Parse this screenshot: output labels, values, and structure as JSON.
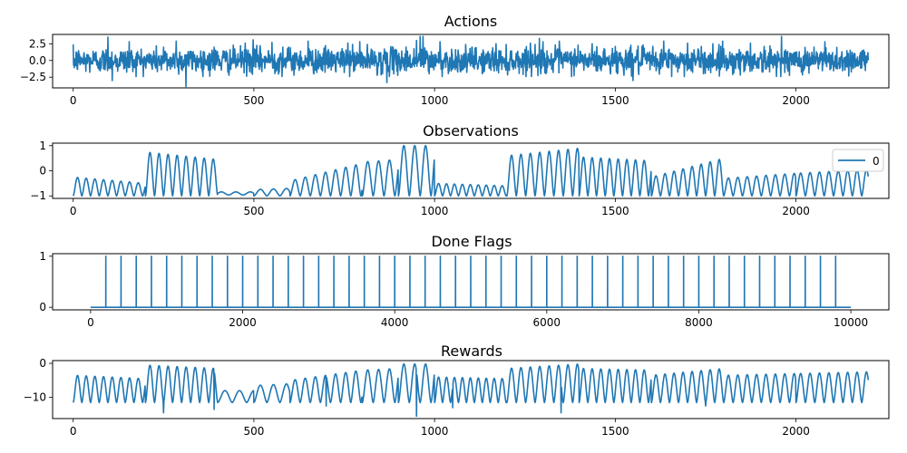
{
  "colors": {
    "series": "#1f77b4",
    "frame": "#000000",
    "background": "#ffffff"
  },
  "chart_data": [
    {
      "type": "line",
      "title": "Actions",
      "xlim": [
        -57,
        2257
      ],
      "ylim": [
        -4.1,
        3.9
      ],
      "xticks": [
        0,
        500,
        1000,
        1500,
        2000
      ],
      "yticks": [
        -2.5,
        0.0,
        2.5
      ],
      "ytick_labels": [
        "−2.5",
        "0.0",
        "2.5"
      ],
      "legend": null,
      "signal": {
        "kind": "noise",
        "x_range": [
          0,
          2200
        ],
        "n": 2201,
        "std": 0.95,
        "spikes": [
          [
            96,
            3.5
          ],
          [
            108,
            -3.0
          ],
          [
            155,
            2.8
          ],
          [
            250,
            2.0
          ],
          [
            285,
            2.9
          ],
          [
            312,
            -3.9
          ],
          [
            390,
            2.0
          ],
          [
            476,
            2.6
          ],
          [
            498,
            3.1
          ],
          [
            550,
            2.7
          ],
          [
            580,
            2.0
          ],
          [
            650,
            2.9
          ],
          [
            760,
            2.6
          ],
          [
            793,
            2.8
          ],
          [
            868,
            -3.3
          ],
          [
            950,
            3.0
          ],
          [
            960,
            3.6
          ],
          [
            968,
            3.6
          ],
          [
            985,
            -2.0
          ],
          [
            1015,
            2.8
          ],
          [
            1170,
            2.5
          ],
          [
            1265,
            2.6
          ],
          [
            1290,
            3.3
          ],
          [
            1300,
            2.8
          ],
          [
            1345,
            2.9
          ],
          [
            1397,
            2.3
          ],
          [
            1436,
            2.5
          ],
          [
            1500,
            2.1
          ],
          [
            1549,
            -3.0
          ],
          [
            1634,
            2.9
          ],
          [
            1700,
            2.6
          ],
          [
            1770,
            2.5
          ],
          [
            1797,
            2.9
          ],
          [
            1874,
            2.6
          ],
          [
            1960,
            3.6
          ],
          [
            2050,
            2.0
          ],
          [
            2080,
            2.8
          ]
        ]
      }
    },
    {
      "type": "line",
      "title": "Observations",
      "xlim": [
        -57,
        2257
      ],
      "ylim": [
        -1.1,
        1.1
      ],
      "xticks": [
        0,
        500,
        1000,
        1500,
        2000
      ],
      "yticks": [
        -1,
        0,
        1
      ],
      "ytick_labels": [
        "−1",
        "0",
        "1"
      ],
      "legend": {
        "label": "0",
        "position": "upper right"
      },
      "signal": {
        "kind": "oscillation",
        "x_range": [
          0,
          2200
        ],
        "n": 2201,
        "floor": -1.0,
        "segments": [
          [
            0,
            200,
            24,
            -0.25,
            -0.5
          ],
          [
            200,
            400,
            25,
            0.75,
            0.45
          ],
          [
            400,
            500,
            40,
            -0.9,
            -0.9
          ],
          [
            500,
            600,
            36,
            -0.75,
            -0.7
          ],
          [
            600,
            800,
            28,
            -0.4,
            0.3
          ],
          [
            800,
            900,
            30,
            0.35,
            0.45
          ],
          [
            900,
            1000,
            30,
            1.0,
            1.0
          ],
          [
            1000,
            1200,
            22,
            -0.5,
            -0.6
          ],
          [
            1200,
            1400,
            26,
            0.6,
            0.9
          ],
          [
            1400,
            1600,
            24,
            0.55,
            0.4
          ],
          [
            1600,
            1800,
            25,
            -0.25,
            0.5
          ],
          [
            1800,
            2000,
            26,
            -0.3,
            -0.1
          ],
          [
            2000,
            2200,
            26,
            -0.1,
            0.05
          ]
        ]
      }
    },
    {
      "type": "line",
      "title": "Done Flags",
      "xlim": [
        -500,
        10500
      ],
      "ylim": [
        -0.05,
        1.05
      ],
      "xticks": [
        0,
        2000,
        4000,
        6000,
        8000,
        10000
      ],
      "yticks": [
        0,
        1
      ],
      "ytick_labels": [
        "0",
        "1"
      ],
      "legend": null,
      "signal": {
        "kind": "spikes",
        "x_range": [
          0,
          10000
        ],
        "baseline": 0,
        "spike_value": 1,
        "spike_positions": [
          200,
          400,
          600,
          800,
          1000,
          1200,
          1400,
          1600,
          1800,
          2000,
          2200,
          2400,
          2600,
          2800,
          3000,
          3200,
          3400,
          3600,
          3800,
          4000,
          4200,
          4400,
          4600,
          4800,
          5000,
          5200,
          5400,
          5600,
          5800,
          6000,
          6200,
          6400,
          6600,
          6800,
          7000,
          7200,
          7400,
          7600,
          7800,
          8000,
          8200,
          8400,
          8600,
          8800,
          9000,
          9200,
          9400,
          9600,
          9800
        ]
      }
    },
    {
      "type": "line",
      "title": "Rewards",
      "xlim": [
        -57,
        2257
      ],
      "ylim": [
        -16.2,
        0.8
      ],
      "xticks": [
        0,
        500,
        1000,
        1500,
        2000
      ],
      "yticks": [
        -10,
        0
      ],
      "ytick_labels": [
        "−10",
        "0"
      ],
      "legend": null,
      "signal": {
        "kind": "oscillation",
        "x_range": [
          0,
          2200
        ],
        "n": 2201,
        "floor": -11.5,
        "segments": [
          [
            0,
            200,
            24,
            -3.5,
            -4.5
          ],
          [
            200,
            400,
            25,
            -0.5,
            -1.5
          ],
          [
            400,
            500,
            40,
            -8.0,
            -8.0
          ],
          [
            500,
            600,
            36,
            -6.5,
            -6.0
          ],
          [
            600,
            800,
            28,
            -5.0,
            -2.0
          ],
          [
            800,
            900,
            30,
            -2.0,
            -1.5
          ],
          [
            900,
            1000,
            30,
            -0.2,
            -0.2
          ],
          [
            1000,
            1200,
            22,
            -4.0,
            -4.5
          ],
          [
            1200,
            1400,
            26,
            -1.5,
            -0.2
          ],
          [
            1400,
            1600,
            24,
            -1.5,
            -2.0
          ],
          [
            1600,
            1800,
            25,
            -3.5,
            -1.5
          ],
          [
            1800,
            2000,
            26,
            -3.5,
            -3.0
          ],
          [
            2000,
            2200,
            26,
            -3.0,
            -2.5
          ]
        ],
        "dips": [
          [
            250,
            -14.5
          ],
          [
            390,
            -13.5
          ],
          [
            700,
            -12.5
          ],
          [
            950,
            -15.5
          ],
          [
            1050,
            -13.0
          ],
          [
            1350,
            -14.5
          ],
          [
            1750,
            -12.5
          ]
        ]
      }
    }
  ]
}
